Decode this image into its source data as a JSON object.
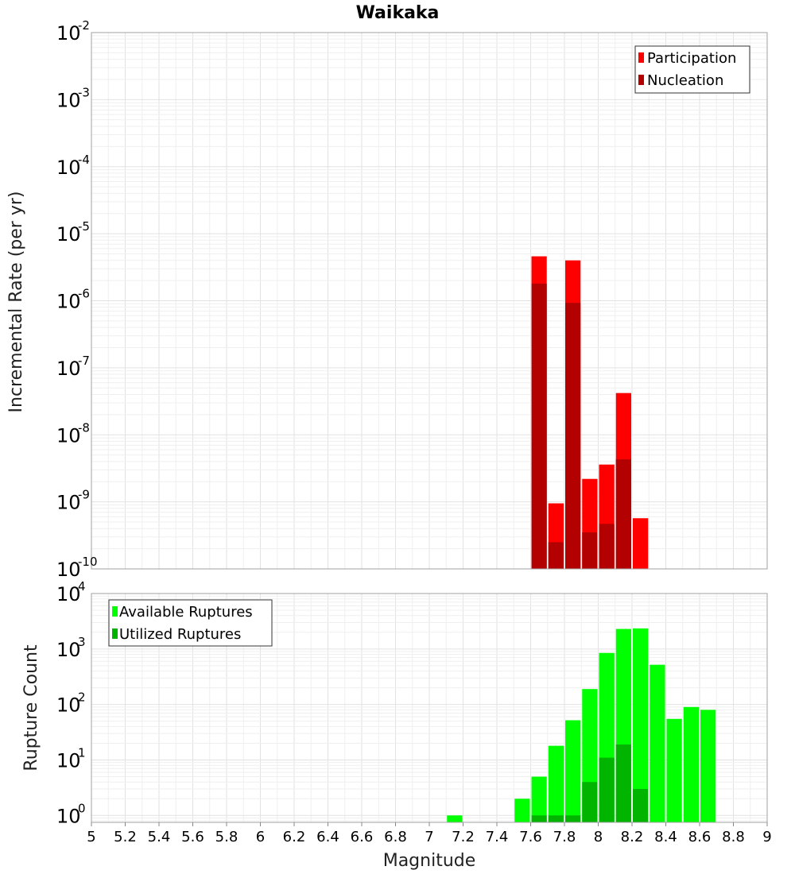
{
  "chart_data": [
    {
      "type": "bar",
      "title": "Waikaka",
      "xlabel": "",
      "ylabel": "Incremental Rate (per yr)",
      "xlim": [
        5,
        9
      ],
      "ylim": [
        1e-10,
        0.01
      ],
      "yscale": "log",
      "grid": true,
      "legend_position": "top-right",
      "bar_width": 0.1,
      "series": [
        {
          "name": "Participation",
          "color": "#ff0000",
          "x": [
            7.65,
            7.75,
            7.85,
            7.95,
            8.05,
            8.15,
            8.25
          ],
          "values": [
            4.6e-06,
            9.5e-10,
            4e-06,
            2.2e-09,
            3.6e-09,
            4.2e-08,
            5.7e-10
          ]
        },
        {
          "name": "Nucleation",
          "color": "#b30000",
          "x": [
            7.65,
            7.75,
            7.85,
            7.95,
            8.05,
            8.15
          ],
          "values": [
            1.8e-06,
            2.5e-10,
            9.3e-07,
            3.5e-10,
            4.7e-10,
            4.3e-09
          ]
        }
      ],
      "y_ticks": [
        {
          "base": "10",
          "exp": "-2"
        },
        {
          "base": "10",
          "exp": "-3"
        },
        {
          "base": "10",
          "exp": "-4"
        },
        {
          "base": "10",
          "exp": "-5"
        },
        {
          "base": "10",
          "exp": "-6"
        },
        {
          "base": "10",
          "exp": "-7"
        },
        {
          "base": "10",
          "exp": "-8"
        },
        {
          "base": "10",
          "exp": "-9"
        },
        {
          "base": "10",
          "exp": "-10"
        }
      ]
    },
    {
      "type": "bar",
      "title": "",
      "xlabel": "Magnitude",
      "ylabel": "Rupture Count",
      "xlim": [
        5,
        9
      ],
      "ylim": [
        0.75,
        10000
      ],
      "yscale": "log",
      "grid": true,
      "legend_position": "top-left",
      "bar_width": 0.1,
      "series": [
        {
          "name": "Available Ruptures",
          "color": "#00ff00",
          "x": [
            7.15,
            7.55,
            7.65,
            7.75,
            7.85,
            7.95,
            8.05,
            8.15,
            8.25,
            8.35,
            8.45,
            8.55,
            8.65
          ],
          "values": [
            1,
            2,
            5,
            18,
            52,
            190,
            850,
            2300,
            2350,
            520,
            55,
            90,
            80
          ]
        },
        {
          "name": "Utilized Ruptures",
          "color": "#00b400",
          "x": [
            7.65,
            7.75,
            7.85,
            7.95,
            8.05,
            8.15,
            8.25
          ],
          "values": [
            1,
            1,
            1,
            4,
            11,
            19,
            3
          ]
        }
      ],
      "y_ticks": [
        {
          "base": "10",
          "exp": "4"
        },
        {
          "base": "10",
          "exp": "3"
        },
        {
          "base": "10",
          "exp": "2"
        },
        {
          "base": "10",
          "exp": "1"
        },
        {
          "base": "10",
          "exp": "0"
        }
      ],
      "x_tick_labels": [
        "5",
        "5.2",
        "5.4",
        "5.6",
        "5.8",
        "6",
        "6.2",
        "6.4",
        "6.6",
        "6.8",
        "7",
        "7.2",
        "7.4",
        "7.6",
        "7.8",
        "8",
        "8.2",
        "8.4",
        "8.6",
        "8.8",
        "9"
      ]
    }
  ]
}
